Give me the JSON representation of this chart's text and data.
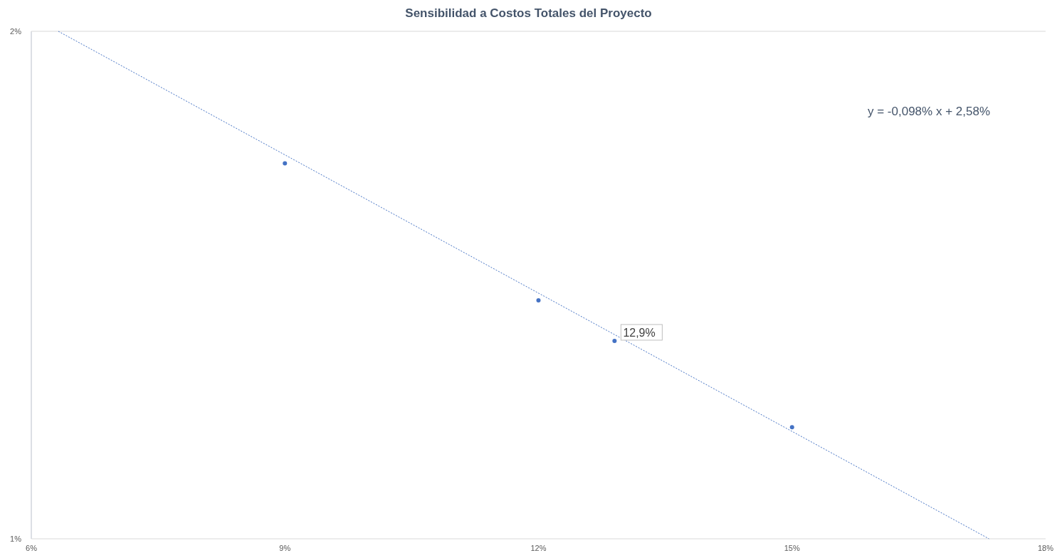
{
  "chart_data": {
    "type": "scatter",
    "title": "Sensibilidad a Costos Totales del Proyecto",
    "x": [
      9,
      12,
      12.9,
      15
    ],
    "xlim": [
      6,
      18
    ],
    "xticks": [
      {
        "value": 6,
        "label": "6%"
      },
      {
        "value": 9,
        "label": "9%"
      },
      {
        "value": 12,
        "label": "12%"
      },
      {
        "value": 15,
        "label": "15%"
      },
      {
        "value": 18,
        "label": "18%"
      }
    ],
    "ylim": [
      1,
      2
    ],
    "yticks": [
      {
        "value": 1,
        "label": "1%"
      },
      {
        "value": 2,
        "label": "2%"
      }
    ],
    "series": [
      {
        "color": "#4472c4",
        "marker": "circle",
        "values": [
          1.74,
          1.47,
          1.39,
          1.22
        ]
      },
      {
        "type": "line",
        "color": "#4472c4",
        "line_style": "dotted",
        "x": [
          6.32,
          17.33
        ],
        "values": [
          2.0,
          1.0
        ]
      }
    ],
    "annotations": [
      "y = -0,098% x + 2,58%",
      {
        "text": "12,9%",
        "x": 12.9,
        "y": 1.39
      }
    ]
  }
}
